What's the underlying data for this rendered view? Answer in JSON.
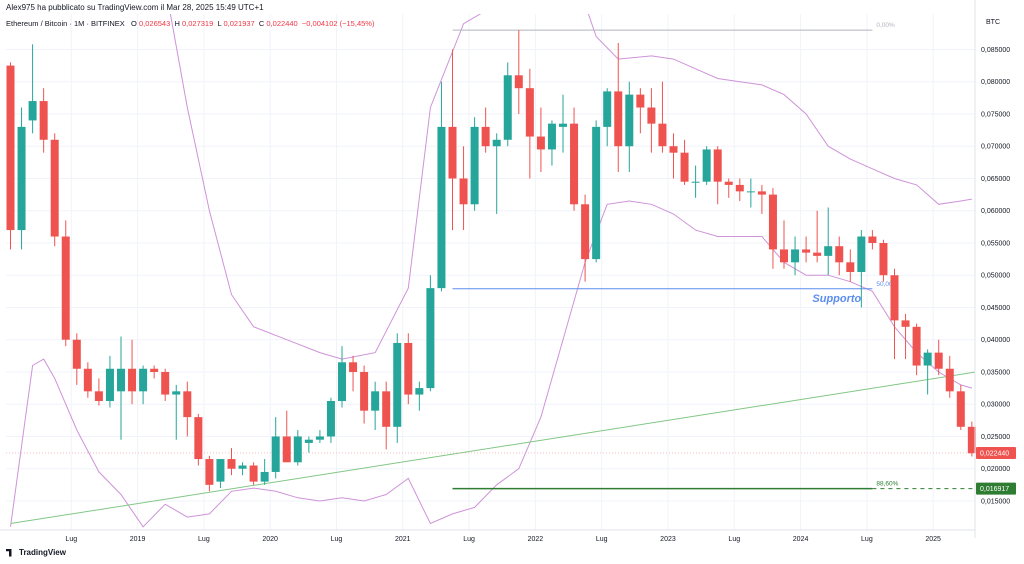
{
  "header": {
    "published": "Alex975 ha pubblicato su TradingView.com il Mar 28, 2025 15:49 UTC+1"
  },
  "legend": {
    "symbol": "Ethereum / Bitcoin · 1M · BITFINEX",
    "o_label": "O",
    "o_value": "0,026543",
    "h_label": "H",
    "h_value": "0,027319",
    "l_label": "L",
    "l_value": "0,021937",
    "c_label": "C",
    "c_value": "0,022440",
    "change": "−0,004102 (−15,45%)"
  },
  "brand": {
    "name": "TradingView",
    "icon": "tradingview-logo-icon"
  },
  "colors": {
    "up": "#26a69a",
    "down": "#ef5350",
    "band": "#ce93d8",
    "trend": "#81c784",
    "support": "#5b8def",
    "fib": "#2e7d32",
    "grid": "#f0f3fa"
  },
  "chart_data": {
    "type": "candlestick",
    "timeframe": "1M",
    "currency": "BTC",
    "ylim": [
      0.0105,
      0.0905
    ],
    "y_ticks": [
      "0,015000",
      "0,020000",
      "0,025000",
      "0,030000",
      "0,035000",
      "0,040000",
      "0,045000",
      "0,050000",
      "0,055000",
      "0,060000",
      "0,065000",
      "0,070000",
      "0,075000",
      "0,080000",
      "0,085000"
    ],
    "x_ticks": [
      {
        "month": 6,
        "label": "Lug"
      },
      {
        "month": 12,
        "label": "2019"
      },
      {
        "month": 18,
        "label": "Lug"
      },
      {
        "month": 24,
        "label": "2020"
      },
      {
        "month": 30,
        "label": "Lug"
      },
      {
        "month": 36,
        "label": "2021"
      },
      {
        "month": 42,
        "label": "Lug"
      },
      {
        "month": 48,
        "label": "2022"
      },
      {
        "month": 54,
        "label": "Lug"
      },
      {
        "month": 60,
        "label": "2023"
      },
      {
        "month": 66,
        "label": "Lug"
      },
      {
        "month": 72,
        "label": "2024"
      },
      {
        "month": 78,
        "label": "Lug"
      },
      {
        "month": 84,
        "label": "2025"
      }
    ],
    "candles": [
      {
        "t": 0,
        "o": 0.0825,
        "h": 0.083,
        "l": 0.054,
        "c": 0.057
      },
      {
        "t": 1,
        "o": 0.057,
        "h": 0.076,
        "l": 0.054,
        "c": 0.073
      },
      {
        "t": 2,
        "o": 0.074,
        "h": 0.0858,
        "l": 0.072,
        "c": 0.077
      },
      {
        "t": 3,
        "o": 0.077,
        "h": 0.079,
        "l": 0.069,
        "c": 0.071
      },
      {
        "t": 4,
        "o": 0.071,
        "h": 0.072,
        "l": 0.0545,
        "c": 0.056
      },
      {
        "t": 5,
        "o": 0.056,
        "h": 0.0585,
        "l": 0.039,
        "c": 0.04
      },
      {
        "t": 6,
        "o": 0.04,
        "h": 0.041,
        "l": 0.033,
        "c": 0.0355
      },
      {
        "t": 7,
        "o": 0.0355,
        "h": 0.0365,
        "l": 0.031,
        "c": 0.032
      },
      {
        "t": 8,
        "o": 0.032,
        "h": 0.034,
        "l": 0.0298,
        "c": 0.0305
      },
      {
        "t": 9,
        "o": 0.0305,
        "h": 0.0375,
        "l": 0.0295,
        "c": 0.0355
      },
      {
        "t": 10,
        "o": 0.032,
        "h": 0.0405,
        "l": 0.0245,
        "c": 0.0355
      },
      {
        "t": 11,
        "o": 0.0355,
        "h": 0.04,
        "l": 0.03,
        "c": 0.032
      },
      {
        "t": 12,
        "o": 0.032,
        "h": 0.036,
        "l": 0.03,
        "c": 0.0355
      },
      {
        "t": 13,
        "o": 0.0355,
        "h": 0.036,
        "l": 0.034,
        "c": 0.035
      },
      {
        "t": 14,
        "o": 0.035,
        "h": 0.0355,
        "l": 0.0305,
        "c": 0.0315
      },
      {
        "t": 15,
        "o": 0.0315,
        "h": 0.033,
        "l": 0.0245,
        "c": 0.032
      },
      {
        "t": 16,
        "o": 0.032,
        "h": 0.0335,
        "l": 0.025,
        "c": 0.028
      },
      {
        "t": 17,
        "o": 0.028,
        "h": 0.0285,
        "l": 0.0205,
        "c": 0.0215
      },
      {
        "t": 18,
        "o": 0.0215,
        "h": 0.022,
        "l": 0.0165,
        "c": 0.0175
      },
      {
        "t": 19,
        "o": 0.018,
        "h": 0.0215,
        "l": 0.017,
        "c": 0.0215
      },
      {
        "t": 20,
        "o": 0.0215,
        "h": 0.0232,
        "l": 0.019,
        "c": 0.02
      },
      {
        "t": 21,
        "o": 0.02,
        "h": 0.021,
        "l": 0.019,
        "c": 0.0205
      },
      {
        "t": 22,
        "o": 0.0205,
        "h": 0.021,
        "l": 0.0175,
        "c": 0.018
      },
      {
        "t": 23,
        "o": 0.018,
        "h": 0.0215,
        "l": 0.0175,
        "c": 0.0195
      },
      {
        "t": 24,
        "o": 0.0195,
        "h": 0.028,
        "l": 0.0185,
        "c": 0.025
      },
      {
        "t": 25,
        "o": 0.025,
        "h": 0.029,
        "l": 0.021,
        "c": 0.021
      },
      {
        "t": 26,
        "o": 0.021,
        "h": 0.026,
        "l": 0.0205,
        "c": 0.025
      },
      {
        "t": 27,
        "o": 0.024,
        "h": 0.025,
        "l": 0.0225,
        "c": 0.0245
      },
      {
        "t": 28,
        "o": 0.0245,
        "h": 0.026,
        "l": 0.024,
        "c": 0.025
      },
      {
        "t": 29,
        "o": 0.025,
        "h": 0.031,
        "l": 0.024,
        "c": 0.0305
      },
      {
        "t": 30,
        "o": 0.0305,
        "h": 0.039,
        "l": 0.0295,
        "c": 0.0365
      },
      {
        "t": 31,
        "o": 0.0365,
        "h": 0.0375,
        "l": 0.032,
        "c": 0.035
      },
      {
        "t": 32,
        "o": 0.035,
        "h": 0.036,
        "l": 0.027,
        "c": 0.029
      },
      {
        "t": 33,
        "o": 0.029,
        "h": 0.0335,
        "l": 0.026,
        "c": 0.032
      },
      {
        "t": 34,
        "o": 0.032,
        "h": 0.0335,
        "l": 0.023,
        "c": 0.0265
      },
      {
        "t": 35,
        "o": 0.0265,
        "h": 0.041,
        "l": 0.024,
        "c": 0.0395
      },
      {
        "t": 36,
        "o": 0.0395,
        "h": 0.041,
        "l": 0.03,
        "c": 0.0315
      },
      {
        "t": 37,
        "o": 0.0315,
        "h": 0.0335,
        "l": 0.029,
        "c": 0.0325
      },
      {
        "t": 38,
        "o": 0.0325,
        "h": 0.05,
        "l": 0.032,
        "c": 0.048
      },
      {
        "t": 39,
        "o": 0.048,
        "h": 0.08,
        "l": 0.0475,
        "c": 0.073
      },
      {
        "t": 40,
        "o": 0.073,
        "h": 0.085,
        "l": 0.057,
        "c": 0.065
      },
      {
        "t": 41,
        "o": 0.065,
        "h": 0.07,
        "l": 0.057,
        "c": 0.061
      },
      {
        "t": 42,
        "o": 0.061,
        "h": 0.0745,
        "l": 0.06,
        "c": 0.073
      },
      {
        "t": 43,
        "o": 0.073,
        "h": 0.076,
        "l": 0.069,
        "c": 0.07
      },
      {
        "t": 44,
        "o": 0.07,
        "h": 0.072,
        "l": 0.0595,
        "c": 0.071
      },
      {
        "t": 45,
        "o": 0.071,
        "h": 0.083,
        "l": 0.07,
        "c": 0.081
      },
      {
        "t": 46,
        "o": 0.081,
        "h": 0.088,
        "l": 0.075,
        "c": 0.079
      },
      {
        "t": 47,
        "o": 0.079,
        "h": 0.082,
        "l": 0.065,
        "c": 0.0715
      },
      {
        "t": 48,
        "o": 0.0715,
        "h": 0.076,
        "l": 0.066,
        "c": 0.0695
      },
      {
        "t": 49,
        "o": 0.0695,
        "h": 0.074,
        "l": 0.067,
        "c": 0.0735
      },
      {
        "t": 50,
        "o": 0.073,
        "h": 0.078,
        "l": 0.069,
        "c": 0.0735
      },
      {
        "t": 51,
        "o": 0.0735,
        "h": 0.076,
        "l": 0.06,
        "c": 0.061
      },
      {
        "t": 52,
        "o": 0.061,
        "h": 0.0625,
        "l": 0.049,
        "c": 0.0525
      },
      {
        "t": 53,
        "o": 0.0525,
        "h": 0.074,
        "l": 0.052,
        "c": 0.073
      },
      {
        "t": 54,
        "o": 0.073,
        "h": 0.079,
        "l": 0.07,
        "c": 0.0785
      },
      {
        "t": 55,
        "o": 0.0785,
        "h": 0.086,
        "l": 0.066,
        "c": 0.07
      },
      {
        "t": 56,
        "o": 0.07,
        "h": 0.08,
        "l": 0.066,
        "c": 0.078
      },
      {
        "t": 57,
        "o": 0.078,
        "h": 0.079,
        "l": 0.072,
        "c": 0.076
      },
      {
        "t": 58,
        "o": 0.076,
        "h": 0.079,
        "l": 0.069,
        "c": 0.0735
      },
      {
        "t": 59,
        "o": 0.0735,
        "h": 0.08,
        "l": 0.069,
        "c": 0.07
      },
      {
        "t": 60,
        "o": 0.07,
        "h": 0.072,
        "l": 0.065,
        "c": 0.069
      },
      {
        "t": 61,
        "o": 0.069,
        "h": 0.071,
        "l": 0.064,
        "c": 0.0645
      },
      {
        "t": 62,
        "o": 0.0645,
        "h": 0.067,
        "l": 0.062,
        "c": 0.0645
      },
      {
        "t": 63,
        "o": 0.0645,
        "h": 0.07,
        "l": 0.064,
        "c": 0.0695
      },
      {
        "t": 64,
        "o": 0.0695,
        "h": 0.07,
        "l": 0.061,
        "c": 0.0645
      },
      {
        "t": 65,
        "o": 0.0645,
        "h": 0.065,
        "l": 0.062,
        "c": 0.064
      },
      {
        "t": 66,
        "o": 0.064,
        "h": 0.065,
        "l": 0.0615,
        "c": 0.063
      },
      {
        "t": 67,
        "o": 0.063,
        "h": 0.065,
        "l": 0.0605,
        "c": 0.063
      },
      {
        "t": 68,
        "o": 0.063,
        "h": 0.064,
        "l": 0.0595,
        "c": 0.0625
      },
      {
        "t": 69,
        "o": 0.0625,
        "h": 0.0635,
        "l": 0.051,
        "c": 0.054
      },
      {
        "t": 70,
        "o": 0.054,
        "h": 0.0585,
        "l": 0.051,
        "c": 0.052
      },
      {
        "t": 71,
        "o": 0.052,
        "h": 0.056,
        "l": 0.05,
        "c": 0.054
      },
      {
        "t": 72,
        "o": 0.054,
        "h": 0.056,
        "l": 0.052,
        "c": 0.0535
      },
      {
        "t": 73,
        "o": 0.0535,
        "h": 0.06,
        "l": 0.052,
        "c": 0.053
      },
      {
        "t": 74,
        "o": 0.053,
        "h": 0.0605,
        "l": 0.05,
        "c": 0.0545
      },
      {
        "t": 75,
        "o": 0.0545,
        "h": 0.056,
        "l": 0.05,
        "c": 0.052
      },
      {
        "t": 76,
        "o": 0.052,
        "h": 0.054,
        "l": 0.049,
        "c": 0.0505
      },
      {
        "t": 77,
        "o": 0.0505,
        "h": 0.057,
        "l": 0.045,
        "c": 0.056
      },
      {
        "t": 78,
        "o": 0.056,
        "h": 0.057,
        "l": 0.054,
        "c": 0.055
      },
      {
        "t": 79,
        "o": 0.055,
        "h": 0.0555,
        "l": 0.049,
        "c": 0.05
      },
      {
        "t": 80,
        "o": 0.05,
        "h": 0.051,
        "l": 0.037,
        "c": 0.043
      },
      {
        "t": 81,
        "o": 0.043,
        "h": 0.044,
        "l": 0.037,
        "c": 0.042
      },
      {
        "t": 82,
        "o": 0.042,
        "h": 0.0425,
        "l": 0.0345,
        "c": 0.036
      },
      {
        "t": 83,
        "o": 0.036,
        "h": 0.0385,
        "l": 0.0315,
        "c": 0.038
      },
      {
        "t": 84,
        "o": 0.038,
        "h": 0.04,
        "l": 0.0345,
        "c": 0.0355
      },
      {
        "t": 85,
        "o": 0.0355,
        "h": 0.0375,
        "l": 0.031,
        "c": 0.032
      },
      {
        "t": 86,
        "o": 0.032,
        "h": 0.033,
        "l": 0.026,
        "c": 0.0265
      },
      {
        "t": 87,
        "o": 0.0265,
        "h": 0.0273,
        "l": 0.0219,
        "c": 0.0224
      }
    ],
    "bollinger": {
      "upper": [
        [
          10,
          0.105
        ],
        [
          14,
          0.095
        ],
        [
          16,
          0.076
        ],
        [
          18,
          0.06
        ],
        [
          20,
          0.047
        ],
        [
          22,
          0.042
        ],
        [
          25,
          0.04
        ],
        [
          28,
          0.038
        ],
        [
          30,
          0.037
        ],
        [
          33,
          0.038
        ],
        [
          36,
          0.048
        ],
        [
          38,
          0.076
        ],
        [
          41,
          0.089
        ],
        [
          44,
          0.092
        ],
        [
          46,
          0.092
        ],
        [
          47,
          0.093
        ],
        [
          50,
          0.093
        ],
        [
          52,
          0.092
        ],
        [
          53,
          0.087
        ],
        [
          55,
          0.0835
        ],
        [
          58,
          0.084
        ],
        [
          60,
          0.0835
        ],
        [
          62,
          0.082
        ],
        [
          64,
          0.0805
        ],
        [
          66,
          0.08
        ],
        [
          68,
          0.0795
        ],
        [
          70,
          0.078
        ],
        [
          72,
          0.075
        ],
        [
          74,
          0.07
        ],
        [
          76,
          0.068
        ],
        [
          78,
          0.0665
        ],
        [
          80,
          0.065
        ],
        [
          82,
          0.064
        ],
        [
          84,
          0.061
        ],
        [
          86,
          0.0615
        ],
        [
          87,
          0.0618
        ]
      ],
      "lower": [
        [
          0,
          0.011
        ],
        [
          2,
          0.036
        ],
        [
          3,
          0.037
        ],
        [
          4,
          0.034
        ],
        [
          6,
          0.026
        ],
        [
          8,
          0.0195
        ],
        [
          10,
          0.016
        ],
        [
          12,
          0.011
        ],
        [
          14,
          0.0145
        ],
        [
          16,
          0.0125
        ],
        [
          18,
          0.013
        ],
        [
          20,
          0.0165
        ],
        [
          22,
          0.017
        ],
        [
          24,
          0.0165
        ],
        [
          26,
          0.0155
        ],
        [
          28,
          0.015
        ],
        [
          30,
          0.0155
        ],
        [
          32,
          0.015
        ],
        [
          34,
          0.016
        ],
        [
          36,
          0.0185
        ],
        [
          38,
          0.0115
        ],
        [
          40,
          0.013
        ],
        [
          42,
          0.014
        ],
        [
          44,
          0.0175
        ],
        [
          46,
          0.02
        ],
        [
          48,
          0.028
        ],
        [
          50,
          0.04
        ],
        [
          52,
          0.052
        ],
        [
          54,
          0.061
        ],
        [
          56,
          0.0615
        ],
        [
          58,
          0.061
        ],
        [
          60,
          0.0595
        ],
        [
          62,
          0.057
        ],
        [
          64,
          0.056
        ],
        [
          66,
          0.056
        ],
        [
          68,
          0.056
        ],
        [
          70,
          0.052
        ],
        [
          72,
          0.05
        ],
        [
          74,
          0.05
        ],
        [
          76,
          0.049
        ],
        [
          78,
          0.0475
        ],
        [
          80,
          0.042
        ],
        [
          82,
          0.038
        ],
        [
          84,
          0.035
        ],
        [
          86,
          0.033
        ],
        [
          87,
          0.0325
        ]
      ]
    },
    "trendline": {
      "from": [
        0,
        0.0115
      ],
      "to": [
        88.5,
        0.0353
      ]
    },
    "levels": [
      {
        "name": "support",
        "label": "Supporto",
        "pct_label": "50,00%",
        "value": 0.0479,
        "from": 40,
        "to": 78
      },
      {
        "name": "fib-top",
        "pct_label": "0,00%",
        "value": 0.088,
        "from": 40,
        "to": 78
      },
      {
        "name": "fib-bottom",
        "pct_label": "88,60%",
        "value": 0.016917,
        "from": 40,
        "to": 78
      }
    ],
    "price_labels": [
      {
        "name": "last-price",
        "value": 0.02244,
        "text": "0,022440",
        "color": "#ef5350"
      },
      {
        "name": "target-price",
        "value": 0.016917,
        "text": "0,016917",
        "color": "#2e7d32"
      }
    ]
  }
}
